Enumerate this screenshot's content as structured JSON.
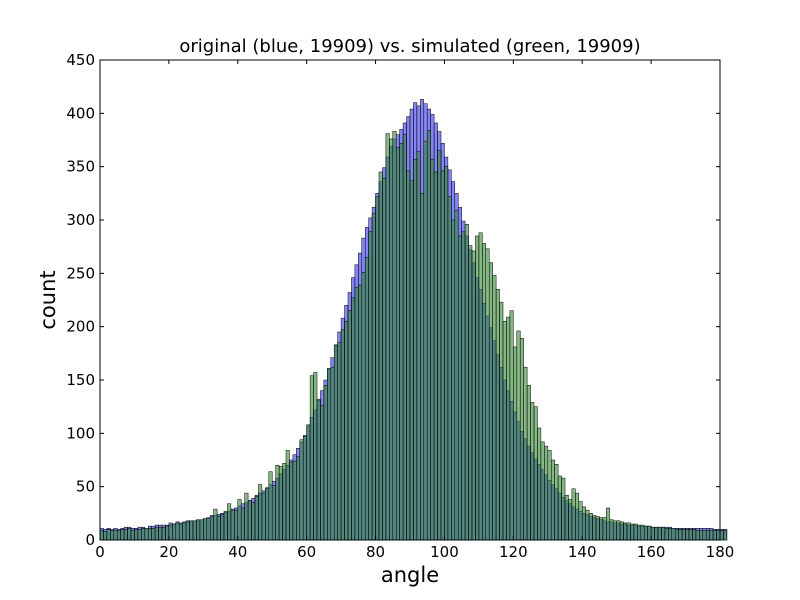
{
  "chart_data": {
    "type": "bar",
    "title": "original (blue, 19909) vs. simulated (green, 19909)",
    "xlabel": "angle",
    "ylabel": "count",
    "xlim": [
      0,
      180
    ],
    "ylim": [
      0,
      450
    ],
    "xticks": [
      0,
      20,
      40,
      60,
      80,
      100,
      120,
      140,
      160,
      180
    ],
    "yticks": [
      0,
      50,
      100,
      150,
      200,
      250,
      300,
      350,
      400,
      450
    ],
    "bin_width": 1,
    "grid": false,
    "series": [
      {
        "color": "#3333ee",
        "values": [
          11,
          10,
          11,
          10,
          11,
          10,
          11,
          12,
          12,
          11,
          11,
          12,
          12,
          11,
          13,
          13,
          14,
          14,
          14,
          14,
          16,
          15,
          17,
          16,
          17,
          18,
          18,
          18,
          19,
          19,
          20,
          21,
          23,
          23,
          24,
          25,
          26,
          27,
          29,
          30,
          32,
          34,
          35,
          37,
          39,
          42,
          44,
          46,
          49,
          52,
          55,
          58,
          62,
          66,
          70,
          75,
          80,
          86,
          92,
          98,
          107,
          115,
          122,
          131,
          140,
          150,
          160,
          171,
          183,
          195,
          208,
          220,
          232,
          246,
          258,
          269,
          283,
          293,
          302,
          312,
          325,
          336,
          349,
          359,
          369,
          376,
          380,
          385,
          391,
          397,
          404,
          410,
          407,
          413,
          409,
          404,
          399,
          391,
          383,
          372,
          359,
          347,
          336,
          325,
          312,
          299,
          285,
          272,
          260,
          246,
          235,
          222,
          210,
          199,
          187,
          174,
          162,
          150,
          140,
          130,
          120,
          111,
          102,
          95,
          88,
          82,
          76,
          71,
          66,
          61,
          56,
          52,
          48,
          44,
          40,
          37,
          34,
          31,
          29,
          27,
          25,
          24,
          22,
          21,
          20,
          19,
          18,
          17,
          17,
          16,
          16,
          15,
          15,
          14,
          14,
          14,
          13,
          13,
          13,
          13,
          12,
          12,
          12,
          12,
          12,
          12,
          11,
          11,
          11,
          11,
          11,
          11,
          11,
          11,
          11,
          11,
          11,
          11,
          10,
          10,
          10,
          10
        ]
      },
      {
        "color": "#338833",
        "values": [
          9,
          8,
          10,
          9,
          9,
          9,
          10,
          10,
          11,
          9,
          10,
          10,
          11,
          11,
          11,
          11,
          12,
          12,
          12,
          13,
          14,
          15,
          16,
          15,
          16,
          17,
          18,
          18,
          19,
          19,
          20,
          20,
          22,
          29,
          22,
          24,
          27,
          34,
          28,
          28,
          38,
          30,
          44,
          37,
          35,
          41,
          52,
          44,
          48,
          64,
          51,
          70,
          69,
          72,
          84,
          73,
          74,
          78,
          94,
          97,
          108,
          154,
          157,
          132,
          126,
          145,
          161,
          162,
          182,
          185,
          197,
          205,
          215,
          227,
          237,
          239,
          251,
          265,
          289,
          306,
          322,
          345,
          339,
          381,
          376,
          383,
          368,
          372,
          380,
          346,
          337,
          357,
          364,
          325,
          374,
          384,
          357,
          345,
          365,
          346,
          350,
          322,
          300,
          309,
          285,
          289,
          296,
          276,
          271,
          285,
          288,
          278,
          273,
          260,
          248,
          235,
          223,
          205,
          209,
          215,
          181,
          196,
          189,
          162,
          145,
          129,
          125,
          105,
          92,
          88,
          84,
          75,
          71,
          60,
          58,
          42,
          38,
          48,
          44,
          36,
          31,
          28,
          25,
          23,
          22,
          21,
          21,
          30,
          19,
          18,
          18,
          17,
          16,
          16,
          15,
          15,
          14,
          14,
          13,
          13,
          12,
          12,
          12,
          12,
          11,
          11,
          11,
          10,
          10,
          10,
          10,
          10,
          10,
          9,
          9,
          9,
          9,
          9,
          9,
          9,
          9,
          9
        ]
      }
    ]
  }
}
